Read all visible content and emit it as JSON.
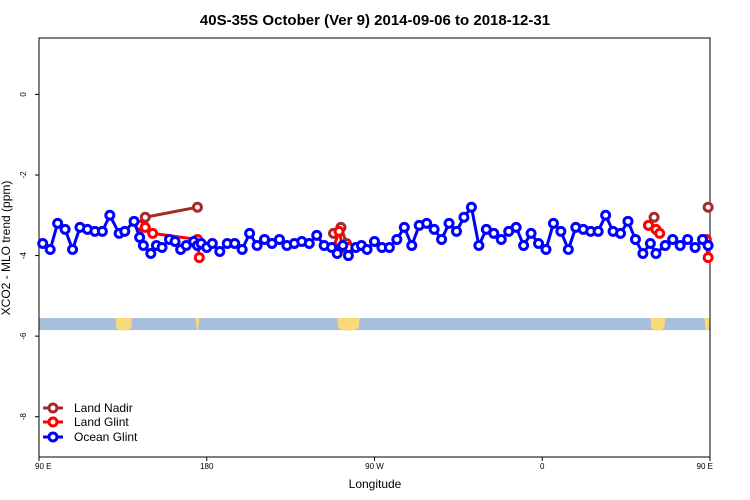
{
  "chart_data": {
    "type": "line",
    "title": "40S-35S October (Ver 9)   2014-09-06 to 2018-12-31",
    "xlabel": "Longitude",
    "ylabel": "XCO2 - MLO trend (ppm)",
    "xlim": [
      90,
      450
    ],
    "ylim": [
      -9,
      1.4
    ],
    "x_ticks": [
      {
        "value": 90,
        "label": "90 E"
      },
      {
        "value": 180,
        "label": "180"
      },
      {
        "value": 270,
        "label": "90 W"
      },
      {
        "value": 360,
        "label": "0"
      },
      {
        "value": 450,
        "label": "90 E"
      },
      {
        "value": 540,
        "label": "180"
      }
    ],
    "y_ticks": [
      {
        "value": 0,
        "label": "0"
      },
      {
        "value": -2,
        "label": "-2"
      },
      {
        "value": -4,
        "label": "-4"
      },
      {
        "value": -6,
        "label": "-6"
      },
      {
        "value": -8,
        "label": "-8"
      }
    ],
    "land_band": {
      "y_top": -5.55,
      "y_bottom": -5.85,
      "ocean_color": "#a7bfdc",
      "land_color": "#f9da78"
    },
    "legend_position": "bottom-left",
    "series": [
      {
        "name": "Land Nadir",
        "color": "#a52a2a",
        "x": [
          145,
          147,
          175
        ],
        "y": [
          -3.3,
          -3.05,
          -2.8
        ]
      },
      {
        "name": "Land Nadir",
        "color": "#a52a2a",
        "x": [
          248,
          252,
          255
        ],
        "y": [
          -3.45,
          -3.3,
          -3.7
        ]
      },
      {
        "name": "Land Nadir",
        "color": "#a52a2a",
        "x": [
          417,
          420
        ],
        "y": [
          -3.25,
          -3.05
        ]
      },
      {
        "name": "Land Nadir",
        "color": "#a52a2a",
        "x": [
          449
        ],
        "y": [
          -2.8
        ]
      },
      {
        "name": "Land Glint",
        "color": "#ff0000",
        "x": [
          144,
          147,
          151,
          175,
          176
        ],
        "y": [
          -3.25,
          -3.3,
          -3.45,
          -3.6,
          -4.05
        ]
      },
      {
        "name": "Land Glint",
        "color": "#ff0000",
        "x": [
          248,
          251,
          253,
          256
        ],
        "y": [
          -3.8,
          -3.4,
          -3.8,
          -3.8
        ]
      },
      {
        "name": "Land Glint",
        "color": "#ff0000",
        "x": [
          417,
          421,
          423
        ],
        "y": [
          -3.25,
          -3.35,
          -3.45
        ]
      },
      {
        "name": "Land Glint",
        "color": "#ff0000",
        "x": [
          448,
          449
        ],
        "y": [
          -3.6,
          -4.05
        ]
      },
      {
        "name": "Ocean Glint",
        "color": "#0000ff",
        "x": [
          92,
          96,
          100,
          104,
          108,
          112,
          116,
          120,
          124,
          128,
          133,
          136,
          141,
          144,
          146,
          150,
          153,
          156,
          160,
          163,
          166,
          169,
          173,
          175,
          177,
          180,
          183,
          187,
          191,
          195,
          199,
          203,
          207,
          211,
          215,
          219,
          223,
          227,
          231,
          235,
          239,
          243,
          247,
          250,
          253,
          256,
          260,
          263,
          266,
          270,
          274,
          278,
          282,
          286,
          290,
          294,
          298,
          302,
          306,
          310,
          314,
          318,
          322,
          326,
          330,
          334,
          338,
          342,
          346,
          350,
          354,
          358,
          362,
          366,
          370,
          374,
          378,
          382,
          386,
          390,
          394,
          398,
          402,
          406,
          410,
          414,
          418,
          421,
          426,
          430,
          434,
          438,
          442,
          446,
          449
        ],
        "y": [
          -3.7,
          -3.85,
          -3.2,
          -3.35,
          -3.85,
          -3.3,
          -3.35,
          -3.4,
          -3.4,
          -3.0,
          -3.45,
          -3.4,
          -3.15,
          -3.55,
          -3.75,
          -3.95,
          -3.75,
          -3.8,
          -3.6,
          -3.65,
          -3.85,
          -3.75,
          -3.65,
          -3.75,
          -3.7,
          -3.8,
          -3.7,
          -3.9,
          -3.7,
          -3.7,
          -3.85,
          -3.45,
          -3.75,
          -3.6,
          -3.7,
          -3.6,
          -3.75,
          -3.7,
          -3.65,
          -3.7,
          -3.5,
          -3.75,
          -3.8,
          -3.95,
          -3.75,
          -4.0,
          -3.8,
          -3.75,
          -3.85,
          -3.65,
          -3.8,
          -3.8,
          -3.6,
          -3.3,
          -3.75,
          -3.25,
          -3.2,
          -3.35,
          -3.6,
          -3.2,
          -3.4,
          -3.05,
          -2.8,
          -3.75,
          -3.35,
          -3.45,
          -3.6,
          -3.4,
          -3.3,
          -3.75,
          -3.45,
          -3.7,
          -3.85,
          -3.2,
          -3.4,
          -3.85,
          -3.3,
          -3.35,
          -3.4,
          -3.4,
          -3.0,
          -3.4,
          -3.45,
          -3.15,
          -3.6,
          -3.95,
          -3.7,
          -3.95,
          -3.75,
          -3.6,
          -3.75,
          -3.6,
          -3.8,
          -3.6,
          -3.75
        ]
      }
    ]
  }
}
